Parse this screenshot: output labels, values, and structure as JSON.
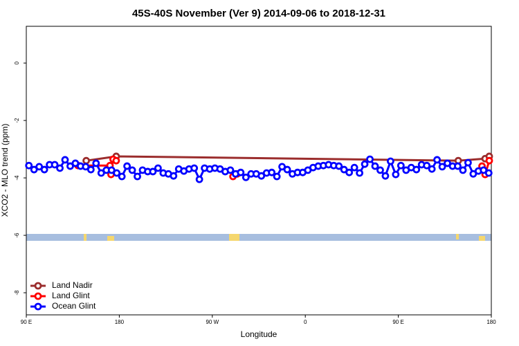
{
  "chart_data": {
    "type": "line",
    "title": "45S-40S November (Ver 9)   2014-09-06 to 2018-12-31",
    "x_label": "Longitude",
    "y_label": "XCO2 - MLO trend (ppm)",
    "xlim": [
      90,
      540
    ],
    "ylim": [
      -8.77,
      1.28
    ],
    "xticks": [
      {
        "value": 90,
        "label": "90 E"
      },
      180,
      {
        "value": 270,
        "label": "90 W"
      },
      {
        "value": 360,
        "label": "0"
      },
      {
        "value": 450,
        "label": "90 E"
      },
      {
        "value": 540,
        "label": "180"
      }
    ],
    "yticks": [
      0,
      -2,
      -4,
      -6,
      -8
    ],
    "legend": "bottom-left",
    "series": [
      {
        "name": "Land Nadir",
        "color": "#9b2d2d",
        "x": [
          148,
          177,
          508,
          534,
          538
        ],
        "values": [
          -3.4,
          -3.25,
          -3.4,
          -3.33,
          -3.25
        ]
      },
      {
        "name": "Land Glint",
        "color": "#ff0000",
        "x": [
          140,
          171,
          172,
          174,
          177,
          230,
          290,
          294,
          450,
          531,
          534,
          538
        ],
        "values": [
          -3.57,
          -3.57,
          -3.88,
          -3.35,
          -3.4,
          null,
          -3.95,
          -3.86,
          null,
          -3.59,
          -3.88,
          -3.4
        ]
      },
      {
        "name": "Ocean Glint",
        "color": "#0000ff",
        "x": [
          92.5,
          97.5,
          102.5,
          107.5,
          112.5,
          117.5,
          122.5,
          127.5,
          132.5,
          137.5,
          142.5,
          147.5,
          152.5,
          157.5,
          162.5,
          167.5,
          172.5,
          177.5,
          182.5,
          187.5,
          192.5,
          197.5,
          202.5,
          207.5,
          212.5,
          217.5,
          222.5,
          227.5,
          232.5,
          237.5,
          242.5,
          247.5,
          252.5,
          257.5,
          262.5,
          267.5,
          272.5,
          277.5,
          282.5,
          287.5,
          292.5,
          297.5,
          302.5,
          307.5,
          312.5,
          317.5,
          322.5,
          327.5,
          332.5,
          337.5,
          342.5,
          347.5,
          352.5,
          357.5,
          362.5,
          367.5,
          372.5,
          377.5,
          382.5,
          387.5,
          392.5,
          397.5,
          402.5,
          407.5,
          412.5,
          417.5,
          422.5,
          427.5,
          432.5,
          437.5,
          442.5,
          447.5,
          452.5,
          457.5,
          462.5,
          467.5,
          472.5,
          477.5,
          482.5,
          487.5,
          492.5,
          497.5,
          502.5,
          507.5,
          512.5,
          517.5,
          522.5,
          527.5,
          532.5,
          537.5
        ],
        "values": [
          -3.57,
          -3.71,
          -3.61,
          -3.71,
          -3.54,
          -3.54,
          -3.66,
          -3.37,
          -3.59,
          -3.49,
          -3.59,
          -3.61,
          -3.71,
          -3.49,
          -3.83,
          -3.73,
          -3.73,
          -3.83,
          -3.95,
          -3.59,
          -3.73,
          -3.95,
          -3.73,
          -3.78,
          -3.78,
          -3.66,
          -3.83,
          -3.86,
          -3.93,
          -3.69,
          -3.76,
          -3.69,
          -3.66,
          -4.05,
          -3.66,
          -3.69,
          -3.66,
          -3.69,
          -3.78,
          -3.73,
          -3.86,
          -3.81,
          -3.98,
          -3.86,
          -3.86,
          -3.93,
          -3.83,
          -3.81,
          -3.95,
          -3.61,
          -3.71,
          -3.86,
          -3.81,
          -3.81,
          -3.73,
          -3.64,
          -3.59,
          -3.57,
          -3.54,
          -3.57,
          -3.59,
          -3.71,
          -3.81,
          -3.64,
          -3.83,
          -3.52,
          -3.35,
          -3.59,
          -3.73,
          -3.93,
          -3.42,
          -3.88,
          -3.57,
          -3.73,
          -3.64,
          -3.71,
          -3.54,
          -3.57,
          -3.69,
          -3.37,
          -3.61,
          -3.49,
          -3.59,
          -3.59,
          -3.73,
          -3.47,
          -3.86,
          -3.76,
          -3.73,
          -3.83
        ]
      }
    ]
  }
}
